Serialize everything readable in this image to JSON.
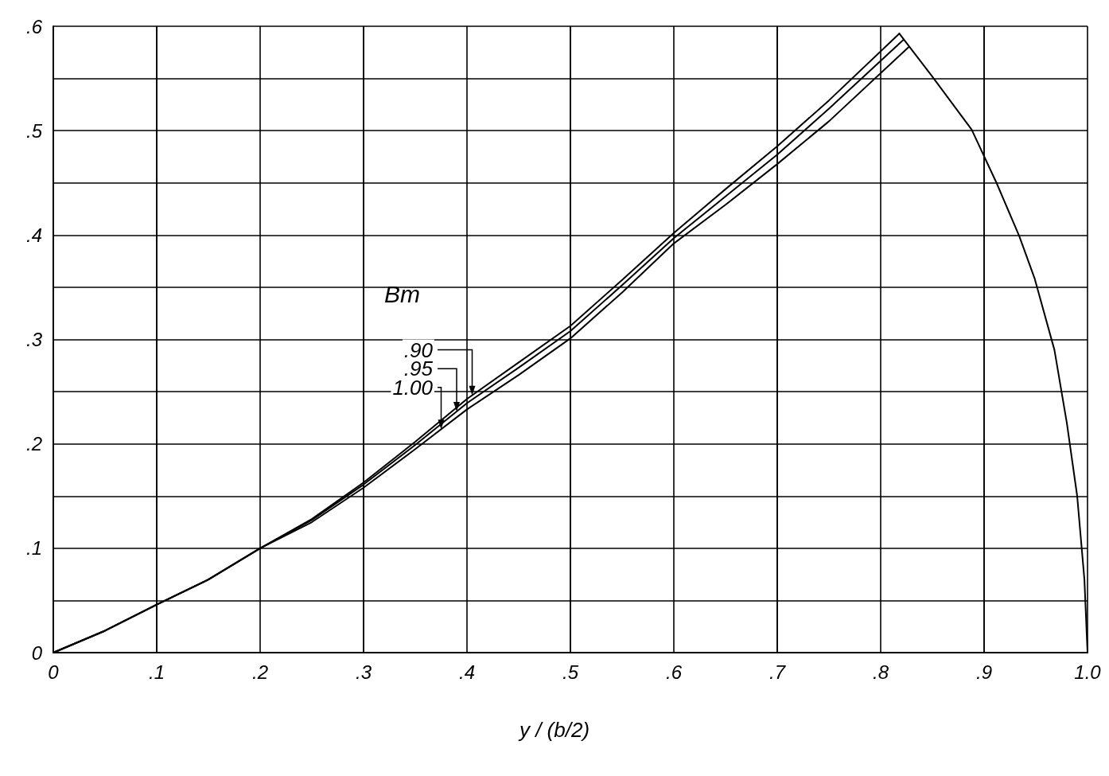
{
  "chart_data": {
    "type": "line",
    "xlabel": "y / (b/2)",
    "legend_title": "Bm",
    "xlim": [
      0,
      1
    ],
    "ylim": [
      0,
      0.6
    ],
    "xticks": [
      {
        "value": 0,
        "label": "0"
      },
      {
        "value": 0.1,
        "label": ".1"
      },
      {
        "value": 0.2,
        "label": ".2"
      },
      {
        "value": 0.3,
        "label": ".3"
      },
      {
        "value": 0.4,
        "label": ".4"
      },
      {
        "value": 0.5,
        "label": ".5"
      },
      {
        "value": 0.6,
        "label": ".6"
      },
      {
        "value": 0.7,
        "label": ".7"
      },
      {
        "value": 0.8,
        "label": ".8"
      },
      {
        "value": 0.9,
        "label": ".9"
      },
      {
        "value": 1,
        "label": "1.0"
      }
    ],
    "yticks": [
      {
        "value": 0,
        "label": "0"
      },
      {
        "value": 0.1,
        "label": ".1"
      },
      {
        "value": 0.2,
        "label": ".2"
      },
      {
        "value": 0.3,
        "label": ".3"
      },
      {
        "value": 0.4,
        "label": ".4"
      },
      {
        "value": 0.5,
        "label": ".5"
      },
      {
        "value": 0.6,
        "label": ".6"
      }
    ],
    "grid": true,
    "legend": "center",
    "marker": "none",
    "line_style": "solid",
    "series": [
      {
        "name": ".90",
        "color": "#000000",
        "x": [
          0,
          0.05,
          0.1,
          0.15,
          0.2,
          0.25,
          0.3,
          0.35,
          0.4,
          0.45,
          0.5,
          0.55,
          0.6,
          0.65,
          0.7,
          0.75,
          0.818
        ],
        "values": [
          0,
          0.021,
          0.046,
          0.07,
          0.1,
          0.128,
          0.163,
          0.202,
          0.243,
          0.278,
          0.313,
          0.357,
          0.402,
          0.444,
          0.485,
          0.529,
          0.593
        ]
      },
      {
        "name": ".95",
        "color": "#000000",
        "x": [
          0,
          0.05,
          0.1,
          0.15,
          0.2,
          0.25,
          0.3,
          0.35,
          0.4,
          0.45,
          0.5,
          0.55,
          0.6,
          0.65,
          0.7,
          0.75,
          0.822
        ],
        "values": [
          0,
          0.021,
          0.046,
          0.07,
          0.1,
          0.127,
          0.161,
          0.199,
          0.239,
          0.273,
          0.308,
          0.352,
          0.397,
          0.437,
          0.477,
          0.521,
          0.587
        ]
      },
      {
        "name": "1.00",
        "color": "#000000",
        "x": [
          0,
          0.05,
          0.1,
          0.15,
          0.2,
          0.25,
          0.3,
          0.35,
          0.4,
          0.45,
          0.5,
          0.55,
          0.6,
          0.65,
          0.7,
          0.75,
          0.827
        ],
        "values": [
          0,
          0.021,
          0.046,
          0.07,
          0.1,
          0.125,
          0.158,
          0.195,
          0.233,
          0.266,
          0.301,
          0.345,
          0.392,
          0.429,
          0.468,
          0.509,
          0.58
        ]
      },
      {
        "color": "#000000",
        "x": [
          0.818,
          0.849,
          0.888,
          0.912,
          0.934,
          0.949,
          0.968,
          0.98,
          0.99,
          0.997,
          1
        ],
        "values": [
          0.593,
          0.553,
          0.501,
          0.45,
          0.399,
          0.358,
          0.29,
          0.22,
          0.15,
          0.07,
          0
        ]
      }
    ]
  }
}
